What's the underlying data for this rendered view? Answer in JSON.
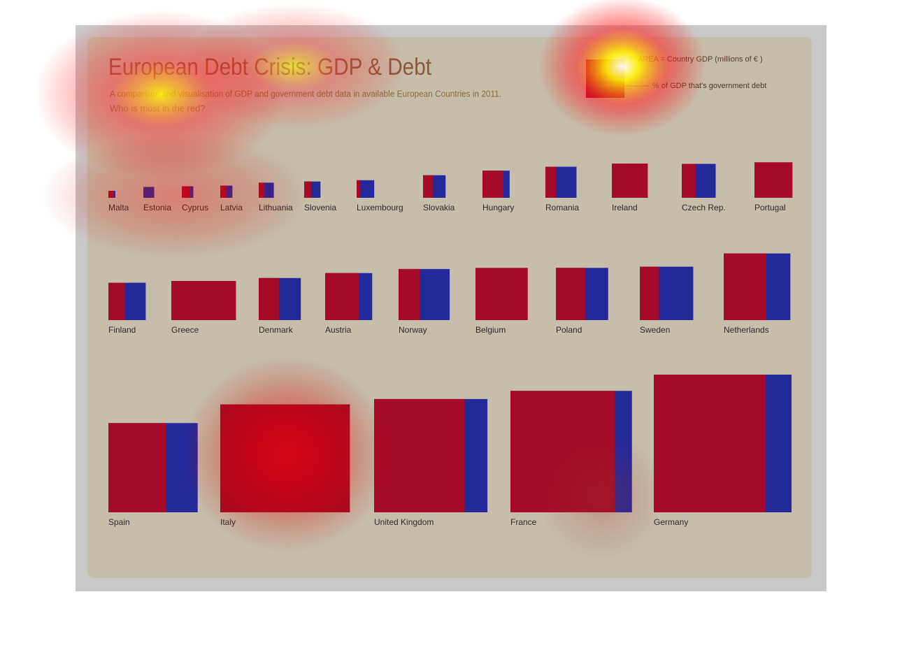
{
  "chart_data": {
    "type": "square",
    "title": "European Debt Crisis: GDP & Debt",
    "subtitle": [
      "A comparison and visualisation of GDP and government debt data in available European Countries in 2011.",
      "Who is most in the red?"
    ],
    "legend": [
      "AREA = Country GDP (millions of  € )",
      "% of GDP that's government debt"
    ],
    "categories": [
      "Malta",
      "Estonia",
      "Cyprus",
      "Latvia",
      "Lithuania",
      "Slovenia",
      "Luxembourg",
      "Slovakia",
      "Hungary",
      "Romania",
      "Ireland",
      "Czech Rep.",
      "Portugal",
      "Finland",
      "Greece",
      "Denmark",
      "Austria",
      "Norway",
      "Belgium",
      "Poland",
      "Sweden",
      "Netherlands",
      "Spain",
      "Italy",
      "United Kingdom",
      "France",
      "Germany"
    ],
    "gdp": [
      6600,
      16000,
      18000,
      20000,
      31000,
      36000,
      42000,
      69000,
      100000,
      131000,
      159000,
      156000,
      171000,
      189000,
      208000,
      240000,
      300000,
      354000,
      370000,
      370000,
      387000,
      602000,
      1080000,
      1580000,
      1740000,
      2000000,
      2570000
    ],
    "debt_pct": [
      70,
      6,
      69,
      53,
      38,
      43,
      20,
      43,
      77,
      34,
      105,
      41,
      107,
      44,
      165,
      48,
      72,
      42,
      100,
      56,
      36,
      64,
      65,
      120,
      80,
      86,
      81
    ],
    "debt_color": "#a50a28",
    "remainder_color": "#23289b"
  }
}
